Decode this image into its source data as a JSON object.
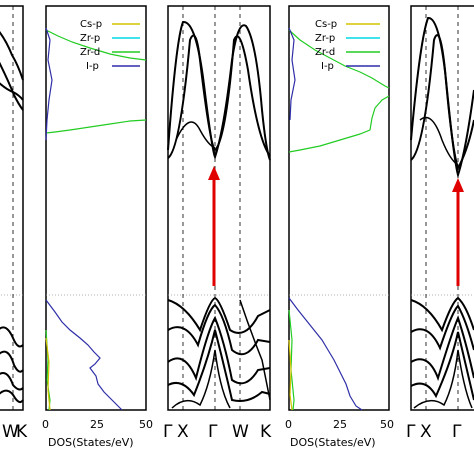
{
  "chart_data": [
    {
      "panel": "band-structure-left",
      "type": "line",
      "x_tick_labels": [
        "W",
        "K"
      ],
      "series": []
    },
    {
      "panel": "dos-left",
      "type": "line",
      "xlabel": "DOS(States/eV)",
      "xlim": [
        0,
        50
      ],
      "x_ticks": [
        "0",
        "25",
        "50"
      ],
      "legend_position": "top-right",
      "series": [
        {
          "name": "Cs-p",
          "color": "#d4c400"
        },
        {
          "name": "Zr-p",
          "color": "#00d8e8"
        },
        {
          "name": "Zr-d",
          "color": "#22cc22"
        },
        {
          "name": "I-p",
          "color": "#2f2fa8"
        }
      ]
    },
    {
      "panel": "band-structure-middle",
      "type": "line",
      "x_tick_labels": [
        "Γ",
        "X",
        "Γ",
        "W",
        "K"
      ],
      "annotation": "red upward arrow at Γ",
      "series": []
    },
    {
      "panel": "dos-right",
      "type": "line",
      "xlabel": "DOS(States/eV)",
      "xlim": [
        0,
        50
      ],
      "x_ticks": [
        "0",
        "25",
        "50"
      ],
      "legend_position": "top-right",
      "series": [
        {
          "name": "Cs-p",
          "color": "#d4c400"
        },
        {
          "name": "Zr-p",
          "color": "#00d8e8"
        },
        {
          "name": "Zr-d",
          "color": "#22cc22"
        },
        {
          "name": "I-p",
          "color": "#2f2fa8"
        }
      ]
    },
    {
      "panel": "band-structure-right",
      "type": "line",
      "x_tick_labels": [
        "Γ",
        "X",
        "Γ"
      ],
      "annotation": "red upward arrow at Γ",
      "series": []
    }
  ],
  "colors": {
    "arrow": "#e00000",
    "bands": "#000000",
    "fermi_line": "#999999"
  }
}
